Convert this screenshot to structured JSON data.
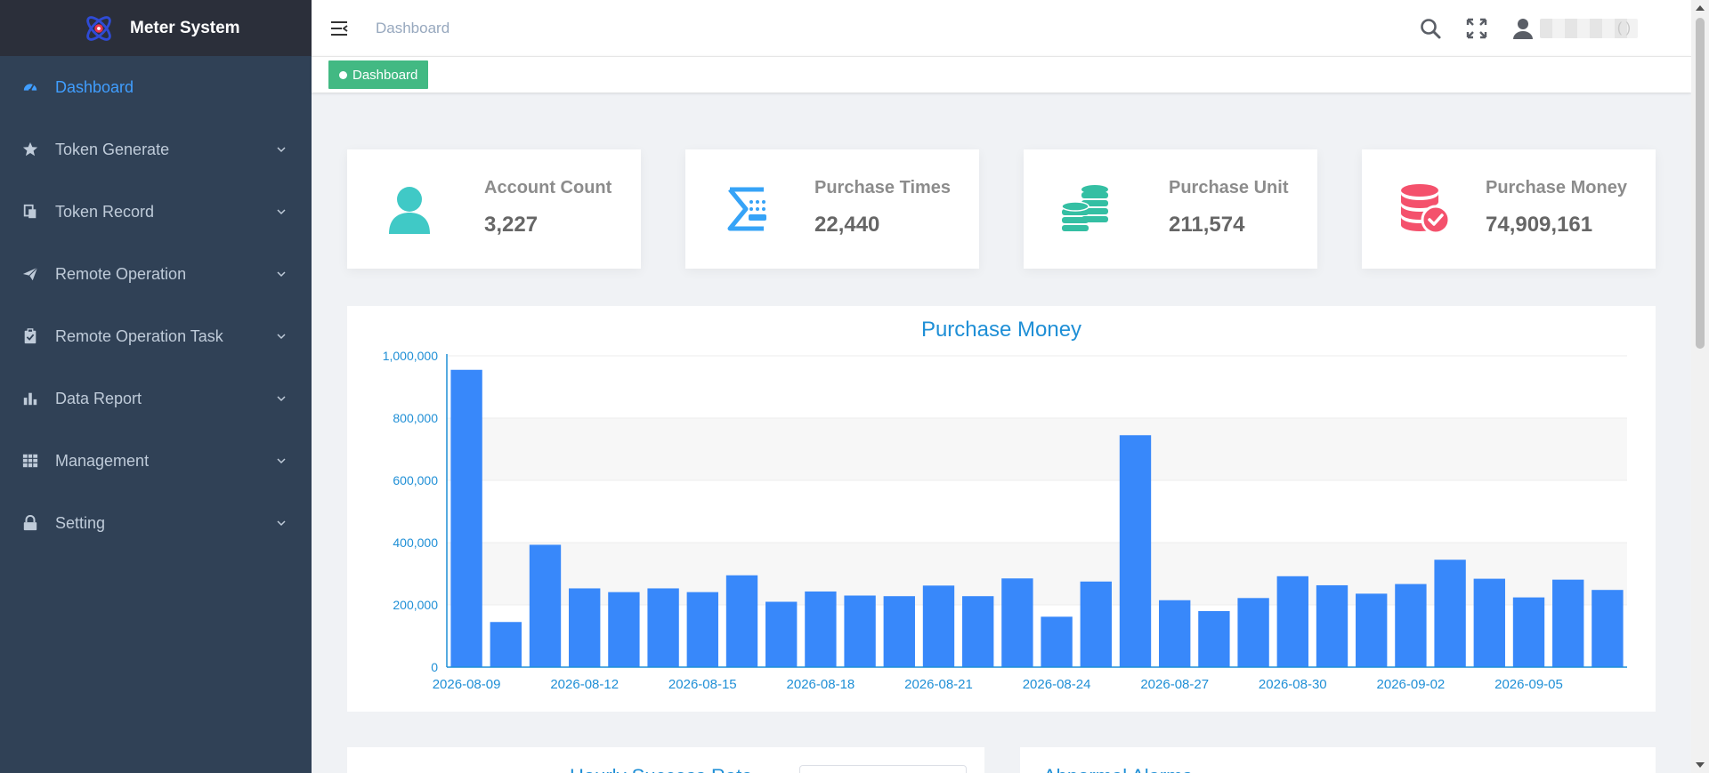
{
  "app": {
    "title": "Meter System"
  },
  "sidebar": {
    "items": [
      {
        "label": "Dashboard",
        "icon": "speedometer-icon",
        "active": true,
        "expandable": false
      },
      {
        "label": "Token Generate",
        "icon": "star-icon",
        "expandable": true
      },
      {
        "label": "Token Record",
        "icon": "documents-icon",
        "expandable": true
      },
      {
        "label": "Remote Operation",
        "icon": "paper-plane-icon",
        "expandable": true
      },
      {
        "label": "Remote Operation Task",
        "icon": "clipboard-icon",
        "expandable": true
      },
      {
        "label": "Data Report",
        "icon": "bar-chart-icon",
        "expandable": true
      },
      {
        "label": "Management",
        "icon": "grid-icon",
        "expandable": true
      },
      {
        "label": "Setting",
        "icon": "lock-icon",
        "expandable": true
      }
    ]
  },
  "header": {
    "breadcrumb": "Dashboard",
    "user_name": "(      )"
  },
  "tags": {
    "active": "Dashboard"
  },
  "cards": [
    {
      "label": "Account Count",
      "value": "3,227",
      "icon": "user-icon",
      "color": "#40c9c6"
    },
    {
      "label": "Purchase Times",
      "value": "22,440",
      "icon": "sigma-keypad-icon",
      "color": "#36a3f7"
    },
    {
      "label": "Purchase Unit",
      "value": "211,574",
      "icon": "coins-icon",
      "color": "#34bfa3"
    },
    {
      "label": "Purchase Money",
      "value": "74,909,161",
      "icon": "database-check-icon",
      "color": "#f4516c"
    }
  ],
  "chart_data": {
    "type": "bar",
    "title": "Purchase Money",
    "xlabel": "",
    "ylabel": "",
    "ylim": [
      0,
      1000000
    ],
    "yticks": [
      "0",
      "200,000",
      "400,000",
      "600,000",
      "800,000",
      "1,000,000"
    ],
    "categories": [
      "2026-08-09",
      "2026-08-10",
      "2026-08-11",
      "2026-08-12",
      "2026-08-13",
      "2026-08-14",
      "2026-08-15",
      "2026-08-16",
      "2026-08-17",
      "2026-08-18",
      "2026-08-19",
      "2026-08-20",
      "2026-08-21",
      "2026-08-22",
      "2026-08-23",
      "2026-08-24",
      "2026-08-25",
      "2026-08-26",
      "2026-08-27",
      "2026-08-28",
      "2026-08-29",
      "2026-08-30",
      "2026-08-31",
      "2026-09-01",
      "2026-09-02",
      "2026-09-03",
      "2026-09-04",
      "2026-09-05",
      "2026-09-06",
      "2026-09-07"
    ],
    "shown_xticks": [
      "2026-08-09",
      "2026-08-12",
      "2026-08-15",
      "2026-08-18",
      "2026-08-21",
      "2026-08-24",
      "2026-08-27",
      "2026-08-30",
      "2026-09-02",
      "2026-09-05"
    ],
    "values": [
      955000,
      145000,
      393000,
      253000,
      241000,
      253000,
      241000,
      295000,
      210000,
      243000,
      230000,
      228000,
      262000,
      228000,
      285000,
      162000,
      275000,
      745000,
      215000,
      180000,
      222000,
      292000,
      263000,
      236000,
      267000,
      345000,
      284000,
      224000,
      281000,
      248000
    ],
    "bar_color": "#3888fa",
    "grid": true
  },
  "bottom_panels": [
    {
      "title": "Hourly Success Rate"
    },
    {
      "title": "Abnormal Alarms"
    }
  ]
}
